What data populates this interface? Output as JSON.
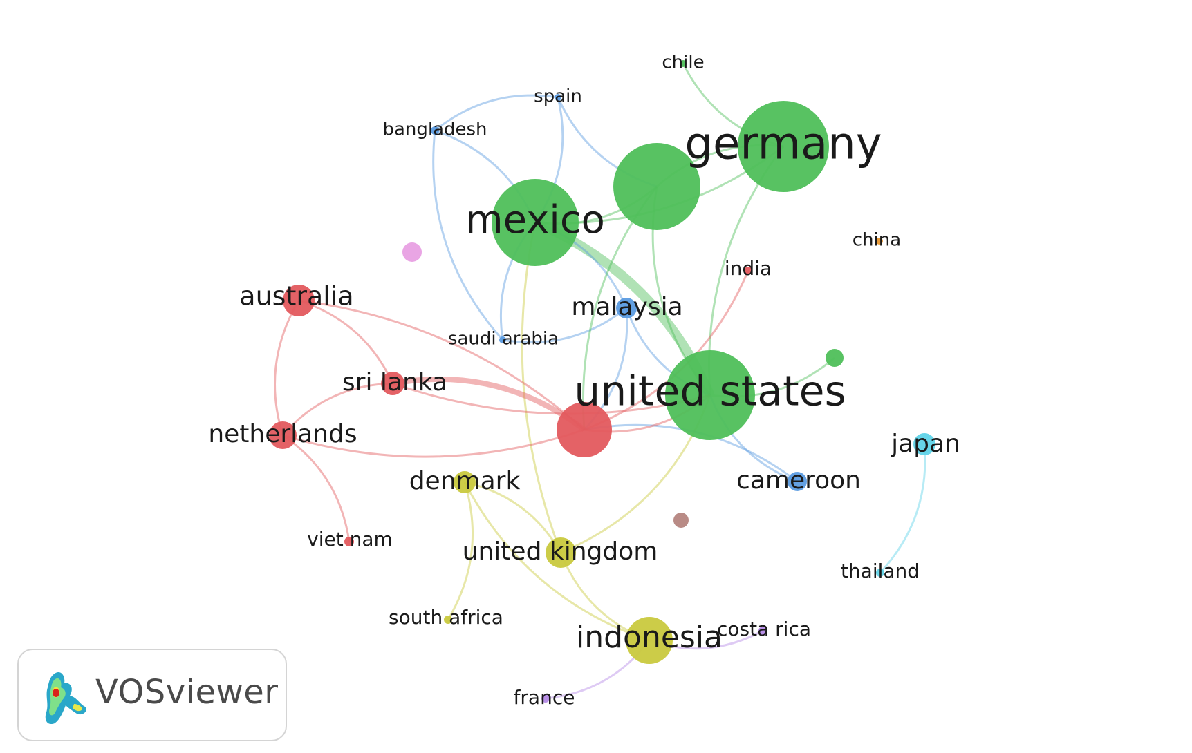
{
  "app": {
    "name": "VOSviewer"
  },
  "colors": {
    "green": "#4fbf5a",
    "red": "#e35a5e",
    "blue": "#5b9be0",
    "yellow": "#c9c93e",
    "cyan": "#5fd3e8",
    "purple": "#b58ae6",
    "pink": "#e8a0e3",
    "orange": "#e8962e",
    "brown": "#b58580"
  },
  "nodes": [
    {
      "id": "germany",
      "label": "germany",
      "cluster": "green"
    },
    {
      "id": "green-unlabeled-large",
      "label": "",
      "cluster": "green"
    },
    {
      "id": "mexico",
      "label": "mexico",
      "cluster": "green"
    },
    {
      "id": "united-states",
      "label": "united states",
      "cluster": "green"
    },
    {
      "id": "chile",
      "label": "chile",
      "cluster": "green"
    },
    {
      "id": "green-unlabeled-small",
      "label": "",
      "cluster": "green"
    },
    {
      "id": "spain",
      "label": "spain",
      "cluster": "blue"
    },
    {
      "id": "bangladesh",
      "label": "bangladesh",
      "cluster": "blue"
    },
    {
      "id": "malaysia",
      "label": "malaysia",
      "cluster": "blue"
    },
    {
      "id": "saudi-arabia",
      "label": "saudi arabia",
      "cluster": "blue"
    },
    {
      "id": "cameroon",
      "label": "cameroon",
      "cluster": "blue"
    },
    {
      "id": "australia",
      "label": "australia",
      "cluster": "red"
    },
    {
      "id": "sri-lanka",
      "label": "sri lanka",
      "cluster": "red"
    },
    {
      "id": "netherlands",
      "label": "netherlands",
      "cluster": "red"
    },
    {
      "id": "viet-nam",
      "label": "viet nam",
      "cluster": "red"
    },
    {
      "id": "india",
      "label": "india",
      "cluster": "red"
    },
    {
      "id": "red-unlabeled-large",
      "label": "",
      "cluster": "red"
    },
    {
      "id": "denmark",
      "label": "denmark",
      "cluster": "yellow"
    },
    {
      "id": "united-kingdom",
      "label": "united kingdom",
      "cluster": "yellow"
    },
    {
      "id": "indonesia",
      "label": "indonesia",
      "cluster": "yellow"
    },
    {
      "id": "south-africa",
      "label": "south africa",
      "cluster": "yellow"
    },
    {
      "id": "japan",
      "label": "japan",
      "cluster": "cyan"
    },
    {
      "id": "thailand",
      "label": "thailand",
      "cluster": "cyan"
    },
    {
      "id": "costa-rica",
      "label": "costa rica",
      "cluster": "purple"
    },
    {
      "id": "france",
      "label": "france",
      "cluster": "purple"
    },
    {
      "id": "china",
      "label": "china",
      "cluster": "orange"
    },
    {
      "id": "pink-unlabeled",
      "label": "",
      "cluster": "pink"
    },
    {
      "id": "brown-unlabeled",
      "label": "",
      "cluster": "brown"
    }
  ],
  "links": [
    {
      "source": "chile",
      "target": "germany",
      "color": "green"
    },
    {
      "source": "green-unlabeled-large",
      "target": "germany",
      "color": "green"
    },
    {
      "source": "mexico",
      "target": "germany",
      "color": "green"
    },
    {
      "source": "mexico",
      "target": "united-states",
      "color": "green"
    },
    {
      "source": "green-unlabeled-large",
      "target": "united-states",
      "color": "green"
    },
    {
      "source": "green-unlabeled-large",
      "target": "mexico",
      "color": "green"
    },
    {
      "source": "united-states",
      "target": "green-unlabeled-small",
      "color": "green"
    },
    {
      "source": "united-states",
      "target": "germany",
      "color": "green"
    },
    {
      "source": "mexico",
      "target": "united-kingdom",
      "color": "yellow"
    },
    {
      "source": "united-states",
      "target": "united-kingdom",
      "color": "yellow"
    },
    {
      "source": "spain",
      "target": "bangladesh",
      "color": "blue"
    },
    {
      "source": "spain",
      "target": "mexico",
      "color": "blue"
    },
    {
      "source": "spain",
      "target": "green-unlabeled-large",
      "color": "blue"
    },
    {
      "source": "bangladesh",
      "target": "mexico",
      "color": "blue"
    },
    {
      "source": "bangladesh",
      "target": "saudi-arabia",
      "color": "blue"
    },
    {
      "source": "mexico",
      "target": "malaysia",
      "color": "blue"
    },
    {
      "source": "mexico",
      "target": "saudi-arabia",
      "color": "blue"
    },
    {
      "source": "malaysia",
      "target": "saudi-arabia",
      "color": "blue"
    },
    {
      "source": "malaysia",
      "target": "united-states",
      "color": "blue"
    },
    {
      "source": "malaysia",
      "target": "red-unlabeled-large",
      "color": "blue"
    },
    {
      "source": "united-states",
      "target": "cameroon",
      "color": "blue"
    },
    {
      "source": "red-unlabeled-large",
      "target": "cameroon",
      "color": "blue"
    },
    {
      "source": "green-unlabeled-large",
      "target": "red-unlabeled-large",
      "color": "green"
    },
    {
      "source": "australia",
      "target": "sri-lanka",
      "color": "red"
    },
    {
      "source": "australia",
      "target": "netherlands",
      "color": "red"
    },
    {
      "source": "australia",
      "target": "red-unlabeled-large",
      "color": "red"
    },
    {
      "source": "sri-lanka",
      "target": "netherlands",
      "color": "red"
    },
    {
      "source": "sri-lanka",
      "target": "red-unlabeled-large",
      "color": "red"
    },
    {
      "source": "sri-lanka",
      "target": "united-states",
      "color": "red"
    },
    {
      "source": "netherlands",
      "target": "viet-nam",
      "color": "red"
    },
    {
      "source": "netherlands",
      "target": "red-unlabeled-large",
      "color": "red"
    },
    {
      "source": "india",
      "target": "red-unlabeled-large",
      "color": "red"
    },
    {
      "source": "red-unlabeled-large",
      "target": "united-states",
      "color": "red"
    },
    {
      "source": "denmark",
      "target": "south-africa",
      "color": "yellow"
    },
    {
      "source": "denmark",
      "target": "indonesia",
      "color": "yellow"
    },
    {
      "source": "denmark",
      "target": "united-kingdom",
      "color": "yellow"
    },
    {
      "source": "united-kingdom",
      "target": "indonesia",
      "color": "yellow"
    },
    {
      "source": "japan",
      "target": "thailand",
      "color": "cyan"
    },
    {
      "source": "indonesia",
      "target": "costa-rica",
      "color": "purple"
    },
    {
      "source": "indonesia",
      "target": "france",
      "color": "purple"
    }
  ]
}
